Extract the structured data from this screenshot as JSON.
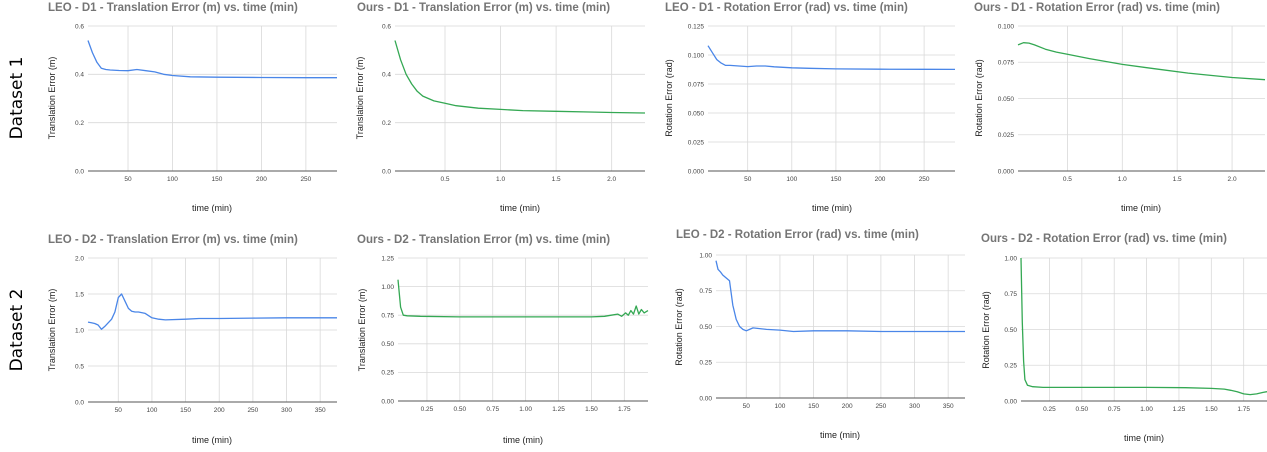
{
  "row_labels": [
    "Dataset 1",
    "Dataset 2"
  ],
  "colors": {
    "leo": "#4a86e8",
    "ours": "#34a853"
  },
  "chart_data": [
    {
      "type": "line",
      "title": "LEO - D1 - Translation Error (m) vs. time (min)",
      "xlabel": "time (min)",
      "ylabel": "Translation Error (m)",
      "xlim": [
        5,
        285
      ],
      "ylim": [
        0,
        0.6
      ],
      "xticks": [
        50,
        100,
        150,
        200,
        250
      ],
      "xticklabels": [
        "50",
        "100",
        "150",
        "200",
        "250"
      ],
      "yticks": [
        0,
        0.2,
        0.4,
        0.6
      ],
      "yticklabels": [
        "0.0",
        "0.2",
        "0.4",
        "0.6"
      ],
      "color": "#4a86e8",
      "series": [
        {
          "x": [
            5,
            10,
            15,
            20,
            25,
            30,
            40,
            50,
            60,
            70,
            80,
            90,
            100,
            120,
            150,
            200,
            250,
            285
          ],
          "y": [
            0.54,
            0.49,
            0.45,
            0.425,
            0.42,
            0.418,
            0.416,
            0.415,
            0.42,
            0.415,
            0.41,
            0.4,
            0.395,
            0.39,
            0.388,
            0.387,
            0.386,
            0.386
          ]
        }
      ]
    },
    {
      "type": "line",
      "title": "Ours - D1 - Translation Error (m) vs. time (min)",
      "xlabel": "time (min)",
      "ylabel": "Translation Error (m)",
      "xlim": [
        0.05,
        2.3
      ],
      "ylim": [
        0,
        0.6
      ],
      "xticks": [
        0.5,
        1.0,
        1.5,
        2.0
      ],
      "xticklabels": [
        "0.5",
        "1.0",
        "1.5",
        "2.0"
      ],
      "yticks": [
        0,
        0.2,
        0.4,
        0.6
      ],
      "yticklabels": [
        "0.0",
        "0.2",
        "0.4",
        "0.6"
      ],
      "color": "#34a853",
      "series": [
        {
          "x": [
            0.05,
            0.1,
            0.15,
            0.2,
            0.25,
            0.3,
            0.4,
            0.5,
            0.6,
            0.8,
            1.0,
            1.2,
            1.5,
            1.8,
            2.0,
            2.3
          ],
          "y": [
            0.54,
            0.46,
            0.4,
            0.36,
            0.33,
            0.31,
            0.29,
            0.28,
            0.27,
            0.26,
            0.255,
            0.25,
            0.247,
            0.244,
            0.242,
            0.24
          ]
        }
      ]
    },
    {
      "type": "line",
      "title": "LEO - D1 - Rotation Error (rad) vs. time (min)",
      "xlabel": "time (min)",
      "ylabel": "Rotation Error (rad)",
      "xlim": [
        5,
        285
      ],
      "ylim": [
        0,
        0.125
      ],
      "xticks": [
        50,
        100,
        150,
        200,
        250
      ],
      "xticklabels": [
        "50",
        "100",
        "150",
        "200",
        "250"
      ],
      "yticks": [
        0,
        0.025,
        0.05,
        0.075,
        0.1,
        0.125
      ],
      "yticklabels": [
        "0.000",
        "0.025",
        "0.050",
        "0.075",
        "0.100",
        "0.125"
      ],
      "color": "#4a86e8",
      "series": [
        {
          "x": [
            5,
            10,
            15,
            20,
            25,
            30,
            40,
            50,
            60,
            70,
            80,
            100,
            120,
            150,
            200,
            250,
            285
          ],
          "y": [
            0.108,
            0.102,
            0.096,
            0.093,
            0.091,
            0.091,
            0.0905,
            0.09,
            0.0905,
            0.0905,
            0.0898,
            0.089,
            0.0885,
            0.088,
            0.0878,
            0.0877,
            0.0876
          ]
        }
      ]
    },
    {
      "type": "line",
      "title": "Ours - D1 - Rotation Error (rad) vs. time (min)",
      "xlabel": "time (min)",
      "ylabel": "Rotation Error (rad)",
      "xlim": [
        0.05,
        2.3
      ],
      "ylim": [
        0,
        0.1
      ],
      "xticks": [
        0.5,
        1.0,
        1.5,
        2.0
      ],
      "xticklabels": [
        "0.5",
        "1.0",
        "1.5",
        "2.0"
      ],
      "yticks": [
        0,
        0.025,
        0.05,
        0.075,
        0.1
      ],
      "yticklabels": [
        "0.000",
        "0.025",
        "0.050",
        "0.075",
        "0.100"
      ],
      "color": "#34a853",
      "series": [
        {
          "x": [
            0.05,
            0.1,
            0.15,
            0.2,
            0.3,
            0.4,
            0.5,
            0.7,
            1.0,
            1.3,
            1.6,
            2.0,
            2.3
          ],
          "y": [
            0.087,
            0.0885,
            0.0882,
            0.087,
            0.084,
            0.082,
            0.0805,
            0.0775,
            0.0735,
            0.0705,
            0.0675,
            0.0645,
            0.063
          ]
        }
      ]
    },
    {
      "type": "line",
      "title": "LEO - D2 - Translation Error (m) vs. time (min)",
      "xlabel": "time (min)",
      "ylabel": "Translation Error (m)",
      "xlim": [
        5,
        375
      ],
      "ylim": [
        0,
        2.0
      ],
      "xticks": [
        50,
        100,
        150,
        200,
        250,
        300,
        350
      ],
      "xticklabels": [
        "50",
        "100",
        "150",
        "200",
        "250",
        "300",
        "350"
      ],
      "yticks": [
        0,
        0.5,
        1.0,
        1.5,
        2.0
      ],
      "yticklabels": [
        "0.0",
        "0.5",
        "1.0",
        "1.5",
        "2.0"
      ],
      "color": "#4a86e8",
      "series": [
        {
          "x": [
            5,
            10,
            15,
            20,
            25,
            30,
            35,
            40,
            45,
            50,
            55,
            60,
            65,
            70,
            75,
            80,
            90,
            100,
            110,
            120,
            150,
            170,
            200,
            250,
            300,
            375
          ],
          "y": [
            1.11,
            1.1,
            1.09,
            1.07,
            1.01,
            1.05,
            1.1,
            1.15,
            1.25,
            1.45,
            1.5,
            1.4,
            1.3,
            1.26,
            1.25,
            1.25,
            1.23,
            1.17,
            1.15,
            1.14,
            1.15,
            1.16,
            1.16,
            1.165,
            1.17,
            1.17
          ]
        }
      ]
    },
    {
      "type": "line",
      "title": "Ours - D2 - Translation Error (m) vs. time (min)",
      "xlabel": "time (min)",
      "ylabel": "Translation Error (m)",
      "xlim": [
        0.03,
        1.93
      ],
      "ylim": [
        0,
        1.25
      ],
      "xticks": [
        0.25,
        0.5,
        0.75,
        1.0,
        1.25,
        1.5,
        1.75
      ],
      "xticklabels": [
        "0.25",
        "0.50",
        "0.75",
        "1.00",
        "1.25",
        "1.50",
        "1.75"
      ],
      "yticks": [
        0,
        0.25,
        0.5,
        0.75,
        1.0,
        1.25
      ],
      "yticklabels": [
        "0.00",
        "0.25",
        "0.50",
        "0.75",
        "1.00",
        "1.25"
      ],
      "color": "#34a853",
      "series": [
        {
          "x": [
            0.03,
            0.05,
            0.07,
            0.1,
            0.2,
            0.5,
            1.0,
            1.5,
            1.6,
            1.65,
            1.7,
            1.73,
            1.76,
            1.78,
            1.8,
            1.82,
            1.84,
            1.86,
            1.88,
            1.9,
            1.93
          ],
          "y": [
            1.06,
            0.82,
            0.75,
            0.745,
            0.74,
            0.735,
            0.735,
            0.735,
            0.74,
            0.75,
            0.76,
            0.74,
            0.77,
            0.75,
            0.79,
            0.76,
            0.83,
            0.76,
            0.8,
            0.77,
            0.79
          ]
        }
      ]
    },
    {
      "type": "line",
      "title": "LEO - D2 - Rotation Error (rad) vs. time (min)",
      "xlabel": "time (min)",
      "ylabel": "Rotation Error (rad)",
      "xlim": [
        5,
        375
      ],
      "ylim": [
        0,
        1.0
      ],
      "xticks": [
        50,
        100,
        150,
        200,
        250,
        300,
        350
      ],
      "xticklabels": [
        "50",
        "100",
        "150",
        "200",
        "250",
        "300",
        "350"
      ],
      "yticks": [
        0,
        0.25,
        0.5,
        0.75,
        1.0
      ],
      "yticklabels": [
        "0.00",
        "0.25",
        "0.50",
        "0.75",
        "1.00"
      ],
      "color": "#4a86e8",
      "series": [
        {
          "x": [
            5,
            8,
            12,
            15,
            20,
            25,
            30,
            35,
            40,
            45,
            50,
            55,
            60,
            70,
            80,
            100,
            120,
            150,
            200,
            250,
            300,
            375
          ],
          "y": [
            0.96,
            0.9,
            0.88,
            0.86,
            0.84,
            0.82,
            0.65,
            0.55,
            0.5,
            0.48,
            0.47,
            0.48,
            0.49,
            0.485,
            0.48,
            0.475,
            0.465,
            0.47,
            0.47,
            0.465,
            0.465,
            0.465
          ]
        }
      ]
    },
    {
      "type": "line",
      "title": "Ours - D2 - Rotation Error (rad) vs. time (min)",
      "xlabel": "time (min)",
      "ylabel": "Rotation Error (rad)",
      "xlim": [
        0.03,
        1.93
      ],
      "ylim": [
        0,
        1.0
      ],
      "xticks": [
        0.25,
        0.5,
        0.75,
        1.0,
        1.25,
        1.5,
        1.75
      ],
      "xticklabels": [
        "0.25",
        "0.50",
        "0.75",
        "1.00",
        "1.25",
        "1.50",
        "1.75"
      ],
      "yticks": [
        0,
        0.25,
        0.5,
        0.75,
        1.0
      ],
      "yticklabels": [
        "0.00",
        "0.25",
        "0.50",
        "0.75",
        "1.00"
      ],
      "color": "#34a853",
      "series": [
        {
          "x": [
            0.03,
            0.04,
            0.05,
            0.06,
            0.08,
            0.12,
            0.2,
            0.5,
            1.0,
            1.3,
            1.5,
            1.6,
            1.65,
            1.7,
            1.75,
            1.8,
            1.85,
            1.9,
            1.93
          ],
          "y": [
            1.0,
            0.55,
            0.28,
            0.15,
            0.11,
            0.1,
            0.095,
            0.095,
            0.095,
            0.093,
            0.088,
            0.083,
            0.075,
            0.065,
            0.05,
            0.045,
            0.05,
            0.06,
            0.065
          ]
        }
      ]
    }
  ]
}
